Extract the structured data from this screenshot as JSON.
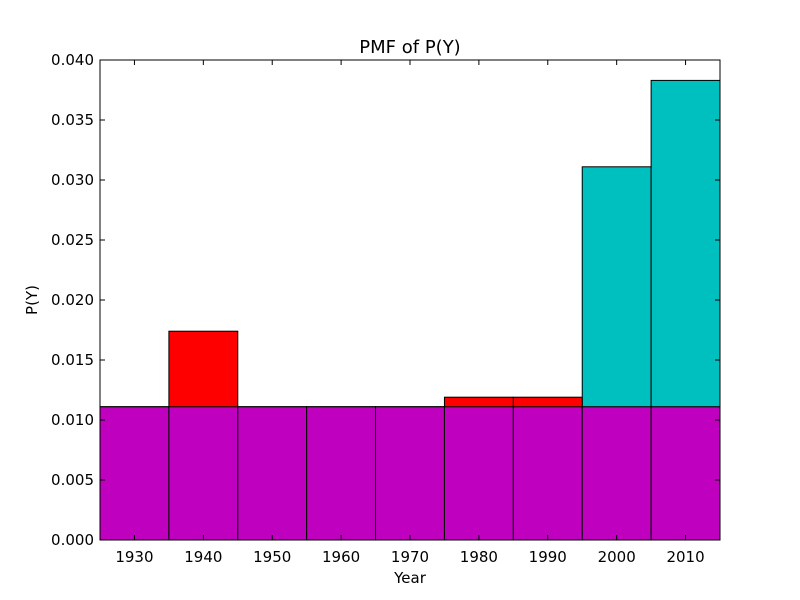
{
  "chart_data": {
    "type": "bar",
    "title": "PMF of P(Y)",
    "xlabel": "Year",
    "ylabel": "P(Y)",
    "xlim": [
      1925,
      2015
    ],
    "ylim": [
      0,
      0.04
    ],
    "categories": [
      "1930",
      "1940",
      "1950",
      "1960",
      "1970",
      "1980",
      "1990",
      "2000",
      "2010"
    ],
    "x": [
      1930,
      1940,
      1950,
      1960,
      1970,
      1980,
      1990,
      2000,
      2010
    ],
    "bar_width": 10,
    "y_ticks": [
      "0.000",
      "0.005",
      "0.010",
      "0.015",
      "0.020",
      "0.025",
      "0.030",
      "0.035",
      "0.040"
    ],
    "grid": false,
    "series": [
      {
        "color": "#00bfbf",
        "values": [
          0.0111,
          0.0111,
          0.0111,
          0.0111,
          0.0111,
          0.0111,
          0.0111,
          0.0311,
          0.0383
        ]
      },
      {
        "color": "#ff0000",
        "values": [
          0.0111,
          0.0174,
          0.0111,
          0.0111,
          0.0111,
          0.0119,
          0.0119,
          0.0111,
          0.0111
        ]
      },
      {
        "color": "#bf00bf",
        "values": [
          0.0111,
          0.0111,
          0.0111,
          0.0111,
          0.0111,
          0.0111,
          0.0111,
          0.0111,
          0.0111
        ]
      }
    ]
  }
}
